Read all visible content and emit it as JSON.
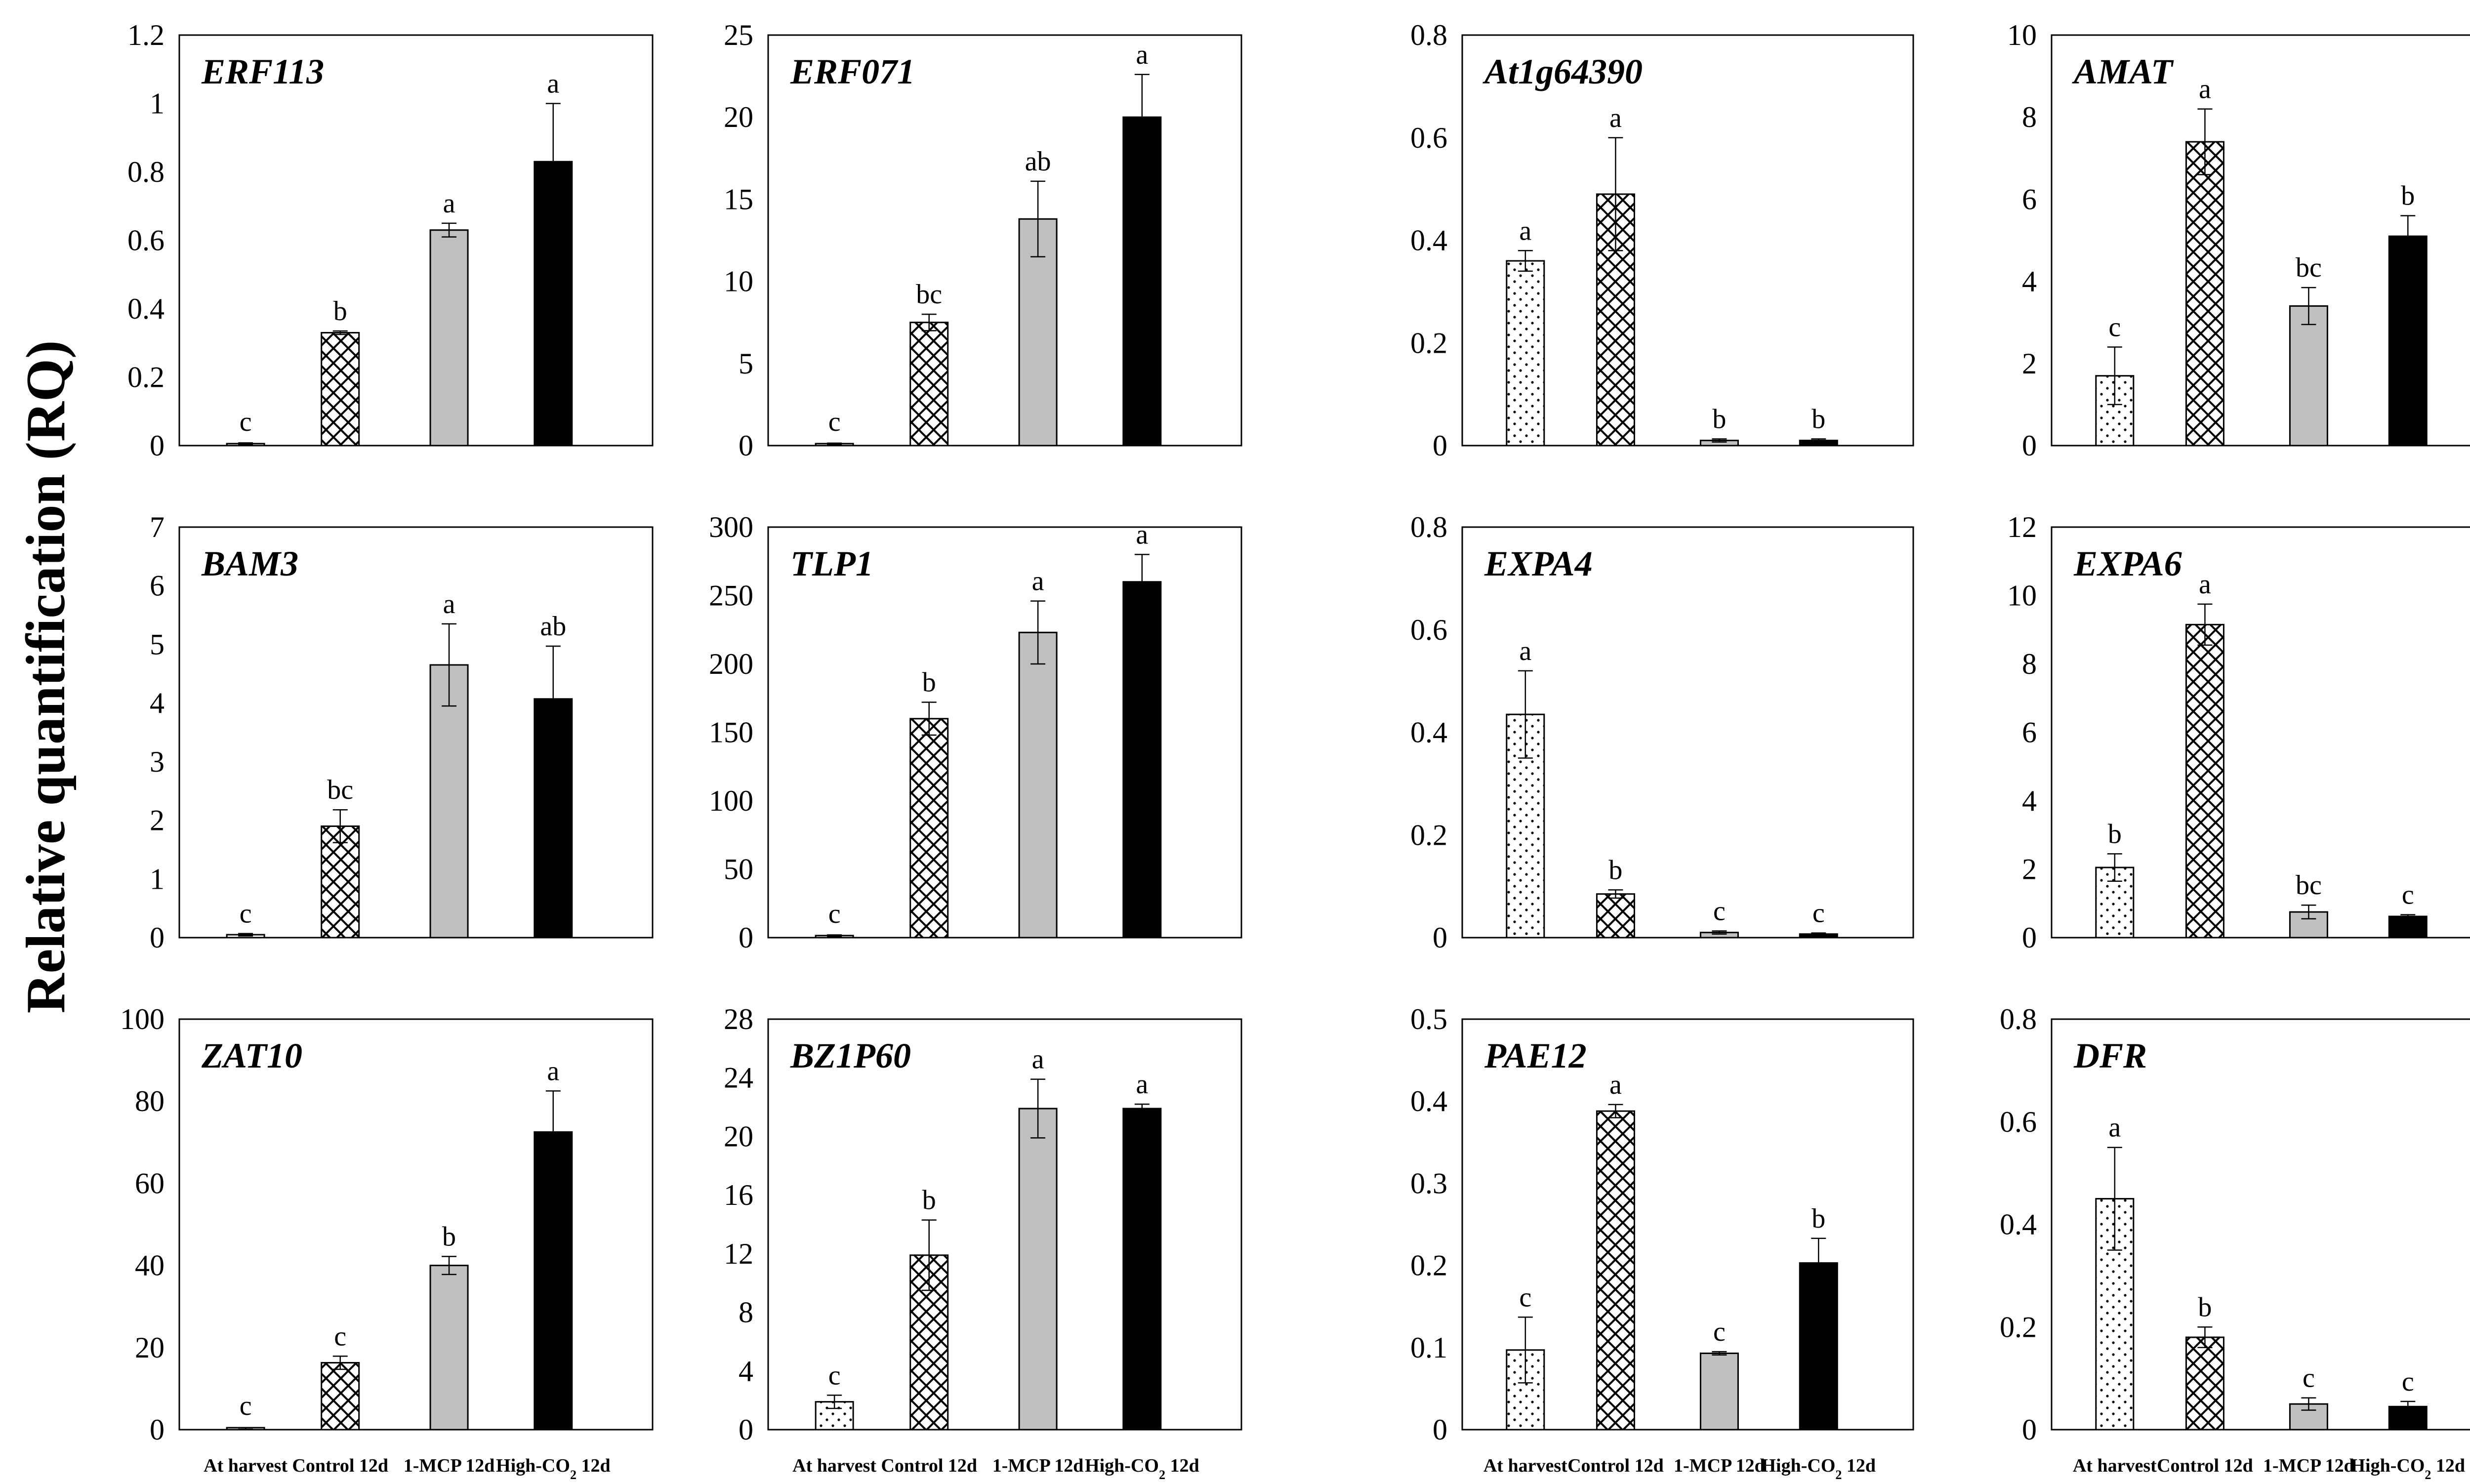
{
  "y_axis_label": "Relative quantification (RQ)",
  "colors": {
    "at_harvest": "#ffffff",
    "control": "#ffffff",
    "mcp": "#c0c0c0",
    "co2": "#000000"
  },
  "chart_data": [
    {
      "type": "bar",
      "title": "ERF113",
      "categories": [
        "At harvest",
        "Control 12d",
        "1-MCP 12d",
        "High-CO2 12d"
      ],
      "values": [
        0.005,
        0.33,
        0.63,
        0.83
      ],
      "errors": [
        0.003,
        0.005,
        0.02,
        0.17
      ],
      "letters": [
        "c",
        "b",
        "a",
        "a"
      ],
      "ylim": [
        0,
        1.2
      ],
      "yticks": [
        "0",
        "0.2",
        "0.4",
        "0.6",
        "0.8",
        "1",
        "1.2"
      ],
      "show_xlabels": false
    },
    {
      "type": "bar",
      "title": "ERF071",
      "categories": [
        "At harvest",
        "Control 12d",
        "1-MCP 12d",
        "High-CO2 12d"
      ],
      "values": [
        0.1,
        7.5,
        13.8,
        20.0
      ],
      "errors": [
        0.05,
        0.5,
        2.3,
        2.6
      ],
      "letters": [
        "c",
        "bc",
        "ab",
        "a"
      ],
      "ylim": [
        0,
        25
      ],
      "yticks": [
        "0",
        "5",
        "10",
        "15",
        "20",
        "25"
      ],
      "show_xlabels": false
    },
    {
      "type": "bar",
      "title": "At1g64390",
      "categories": [
        "At harvest",
        "Control 12d",
        "1-MCP 12d",
        "High-CO2 12d"
      ],
      "values": [
        0.36,
        0.49,
        0.01,
        0.01
      ],
      "errors": [
        0.02,
        0.11,
        0.003,
        0.003
      ],
      "letters": [
        "a",
        "a",
        "b",
        "b"
      ],
      "ylim": [
        0,
        0.8
      ],
      "yticks": [
        "0",
        "0.2",
        "0.4",
        "0.6",
        "0.8"
      ],
      "show_xlabels": false
    },
    {
      "type": "bar",
      "title": "AMAT",
      "categories": [
        "At harvest",
        "Control 12d",
        "1-MCP 12d",
        "High-CO2 12d"
      ],
      "values": [
        1.7,
        7.4,
        3.4,
        5.1
      ],
      "errors": [
        0.7,
        0.8,
        0.45,
        0.5
      ],
      "letters": [
        "c",
        "a",
        "bc",
        "b"
      ],
      "ylim": [
        0,
        10
      ],
      "yticks": [
        "0",
        "2",
        "4",
        "6",
        "8",
        "10"
      ],
      "show_xlabels": false
    },
    {
      "type": "bar",
      "title": "BAM3",
      "categories": [
        "At harvest",
        "Control 12d",
        "1-MCP 12d",
        "High-CO2 12d"
      ],
      "values": [
        0.05,
        1.9,
        4.65,
        4.07
      ],
      "errors": [
        0.02,
        0.28,
        0.7,
        0.9
      ],
      "letters": [
        "c",
        "bc",
        "a",
        "ab"
      ],
      "ylim": [
        0,
        7
      ],
      "yticks": [
        "0",
        "1",
        "2",
        "3",
        "4",
        "5",
        "6",
        "7"
      ],
      "show_xlabels": false
    },
    {
      "type": "bar",
      "title": "TLP1",
      "categories": [
        "At harvest",
        "Control 12d",
        "1-MCP 12d",
        "High-CO2 12d"
      ],
      "values": [
        1.5,
        160,
        223,
        260
      ],
      "errors": [
        0.5,
        12,
        23,
        20
      ],
      "letters": [
        "c",
        "b",
        "a",
        "a"
      ],
      "ylim": [
        0,
        300
      ],
      "yticks": [
        "0",
        "50",
        "100",
        "150",
        "200",
        "250",
        "300"
      ],
      "show_xlabels": false
    },
    {
      "type": "bar",
      "title": "EXPA4",
      "categories": [
        "At harvest",
        "Control 12d",
        "1-MCP 12d",
        "High-CO2 12d"
      ],
      "values": [
        0.435,
        0.085,
        0.01,
        0.007
      ],
      "errors": [
        0.085,
        0.008,
        0.003,
        0.002
      ],
      "letters": [
        "a",
        "b",
        "c",
        "c"
      ],
      "ylim": [
        0,
        0.8
      ],
      "yticks": [
        "0",
        "0.2",
        "0.4",
        "0.6",
        "0.8"
      ],
      "show_xlabels": false
    },
    {
      "type": "bar",
      "title": "EXPA6",
      "categories": [
        "At harvest",
        "Control 12d",
        "1-MCP 12d",
        "High-CO2 12d"
      ],
      "values": [
        2.05,
        9.15,
        0.75,
        0.62
      ],
      "errors": [
        0.4,
        0.6,
        0.2,
        0.05
      ],
      "letters": [
        "b",
        "a",
        "bc",
        "c"
      ],
      "ylim": [
        0,
        12
      ],
      "yticks": [
        "0",
        "2",
        "4",
        "6",
        "8",
        "10",
        "12"
      ],
      "show_xlabels": false
    },
    {
      "type": "bar",
      "title": "ZAT10",
      "categories": [
        "At harvest",
        "Control 12d",
        "1-MCP 12d",
        "High-CO2 12d"
      ],
      "values": [
        0.3,
        16.3,
        40.0,
        72.5
      ],
      "errors": [
        0.2,
        1.6,
        2.2,
        10.0
      ],
      "letters": [
        "c",
        "c",
        "b",
        "a"
      ],
      "ylim": [
        0,
        100
      ],
      "yticks": [
        "0",
        "20",
        "40",
        "60",
        "80",
        "100"
      ],
      "show_xlabels": true
    },
    {
      "type": "bar",
      "title": "BZ1P60",
      "categories": [
        "At harvest",
        "Control 12d",
        "1-MCP 12d",
        "High-CO2 12d"
      ],
      "values": [
        1.9,
        11.9,
        21.9,
        21.9
      ],
      "errors": [
        0.45,
        2.4,
        2.0,
        0.3
      ],
      "letters": [
        "c",
        "b",
        "a",
        "a"
      ],
      "ylim": [
        0,
        28
      ],
      "yticks": [
        "0",
        "4",
        "8",
        "12",
        "16",
        "20",
        "24",
        "28"
      ],
      "show_xlabels": true
    },
    {
      "type": "bar",
      "title": "PAE12",
      "categories": [
        "At harvest",
        "Control 12d",
        "1-MCP 12d",
        "High-CO2 12d"
      ],
      "values": [
        0.097,
        0.388,
        0.093,
        0.203
      ],
      "errors": [
        0.04,
        0.008,
        0.002,
        0.03
      ],
      "letters": [
        "c",
        "a",
        "c",
        "b"
      ],
      "ylim": [
        0,
        0.5
      ],
      "yticks": [
        "0",
        "0.1",
        "0.2",
        "0.3",
        "0.4",
        "0.5"
      ],
      "show_xlabels": true
    },
    {
      "type": "bar",
      "title": "DFR",
      "categories": [
        "At harvest",
        "Control 12d",
        "1-MCP 12d",
        "High-CO2 12d"
      ],
      "values": [
        0.45,
        0.18,
        0.05,
        0.045
      ],
      "errors": [
        0.1,
        0.02,
        0.012,
        0.01
      ],
      "letters": [
        "a",
        "b",
        "c",
        "c"
      ],
      "ylim": [
        0,
        0.8
      ],
      "yticks": [
        "0",
        "0.2",
        "0.4",
        "0.6",
        "0.8"
      ],
      "show_xlabels": true
    }
  ]
}
